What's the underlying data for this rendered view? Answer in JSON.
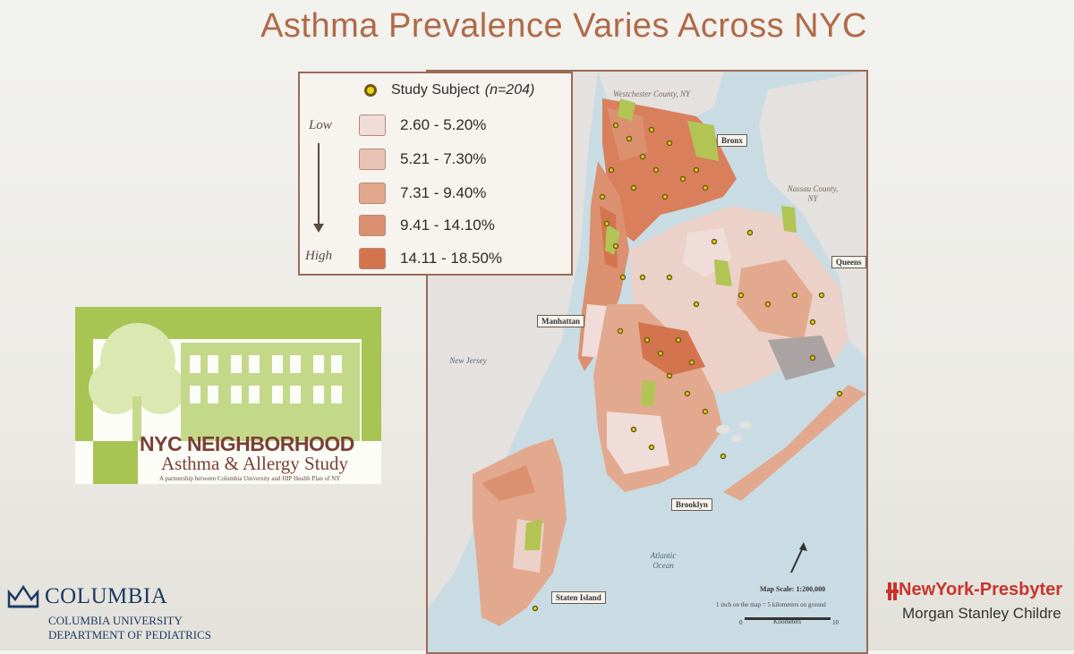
{
  "slide": {
    "title": "Asthma Prevalence Varies Across NYC"
  },
  "legend": {
    "study_subject_label": "Study Subject",
    "study_subject_n": "(n=204)",
    "low_label": "Low",
    "high_label": "High",
    "classes": [
      {
        "range": "2.60 - 5.20%",
        "color": "#f0dcd8"
      },
      {
        "range": "5.21 - 7.30%",
        "color": "#e9c3b6"
      },
      {
        "range": "7.31 - 9.40%",
        "color": "#e2a98e"
      },
      {
        "range": "9.41 - 14.10%",
        "color": "#db916f"
      },
      {
        "range": "14.11 - 18.50%",
        "color": "#d3744f"
      }
    ],
    "study_dot_color": "#e9d21a"
  },
  "map": {
    "labels": {
      "manhattan": "Manhattan",
      "bronx": "Bronx",
      "queens": "Queens",
      "brooklyn": "Brooklyn",
      "staten_island": "Staten Island"
    },
    "water": {
      "new_jersey": "New Jersey",
      "atlantic": "Atlantic Ocean",
      "westchester": "Westchester County, NY",
      "nassau": "Nassau County, NY"
    },
    "scale_title": "Map Scale: 1:200,000",
    "scale_note": "1 inch on the map = 5 kilometers on ground",
    "scale_zero": "0",
    "scale_ten": "10",
    "scale_unit": "Kilometers",
    "north_label": "North"
  },
  "logo": {
    "title": "NYC NEIGHBORHOOD",
    "subtitle": "Asthma & Allergy Study",
    "tagline": "A partnership between Columbia University and HIP Health Plan of NY"
  },
  "columbia": {
    "name": "COLUMBIA",
    "university": "COLUMBIA UNIVERSITY",
    "department": "DEPARTMENT OF PEDIATRICS"
  },
  "nyp": {
    "name": "NewYork-Presbyter",
    "sub": "Morgan Stanley Childre"
  }
}
